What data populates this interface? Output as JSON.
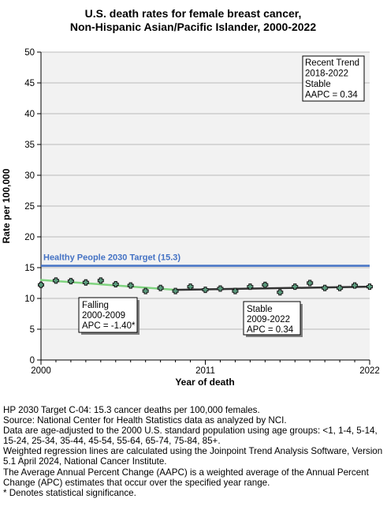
{
  "chart_data": {
    "type": "line",
    "title": "U.S. death rates for female breast cancer,",
    "subtitle": "Non-Hispanic Asian/Pacific Islander,  2000-2022",
    "xlabel": "Year of death",
    "ylabel": "Rate per 100,000",
    "xlim": [
      2000,
      2022
    ],
    "ylim": [
      0,
      50
    ],
    "x_ticks": [
      "2000",
      "2011",
      "2022"
    ],
    "y_ticks": [
      "0",
      "5",
      "10",
      "15",
      "20",
      "25",
      "30",
      "35",
      "40",
      "45",
      "50"
    ],
    "grid": "horizontal",
    "target_line": {
      "label": "Healthy People 2030 Target (15.3)",
      "value": 15.3,
      "color": "#4472c4"
    },
    "observed": {
      "marker": "plus",
      "color": "#5fa383",
      "x": [
        2000,
        2001,
        2002,
        2003,
        2004,
        2005,
        2006,
        2007,
        2008,
        2009,
        2010,
        2011,
        2012,
        2013,
        2014,
        2015,
        2016,
        2017,
        2018,
        2019,
        2020,
        2021,
        2022
      ],
      "y": [
        12.2,
        12.9,
        12.8,
        12.6,
        12.9,
        12.3,
        12.1,
        11.2,
        11.7,
        11.2,
        11.9,
        11.4,
        11.6,
        11.2,
        11.9,
        12.2,
        11.0,
        11.9,
        12.5,
        11.7,
        11.7,
        12.1,
        11.9
      ]
    },
    "trend_segments": [
      {
        "x": [
          2000,
          2009
        ],
        "y": [
          13.0,
          11.4
        ],
        "color": "#7fd37f"
      },
      {
        "x": [
          2009,
          2022
        ],
        "y": [
          11.4,
          11.9
        ],
        "color": "#333333"
      }
    ],
    "annotations": [
      {
        "lines": [
          "Recent Trend",
          "2018-2022",
          "Stable",
          "AAPC =  0.34"
        ]
      },
      {
        "lines": [
          "Falling",
          "2000-2009",
          "APC = -1.40*"
        ]
      },
      {
        "lines": [
          "Stable",
          "2009-2022",
          "APC =  0.34"
        ]
      }
    ]
  },
  "footnotes": [
    "HP 2030 Target C-04: 15.3 cancer deaths per 100,000 females.",
    "Source: National Center for Health Statistics data as analyzed by NCI.",
    "Data are age-adjusted to the 2000 U.S. standard population using age groups: <1, 1-4, 5-14, 15-24, 25-34, 35-44, 45-54, 55-64, 65-74, 75-84, 85+.",
    "Weighted regression lines are calculated using the Joinpoint Trend Analysis Software, Version 5.1 April 2024, National Cancer Institute.",
    "The Average Annual Percent Change (AAPC) is a weighted average of the Annual Percent Change (APC) estimates that occur over the specified year range.",
    "* Denotes statistical significance."
  ]
}
